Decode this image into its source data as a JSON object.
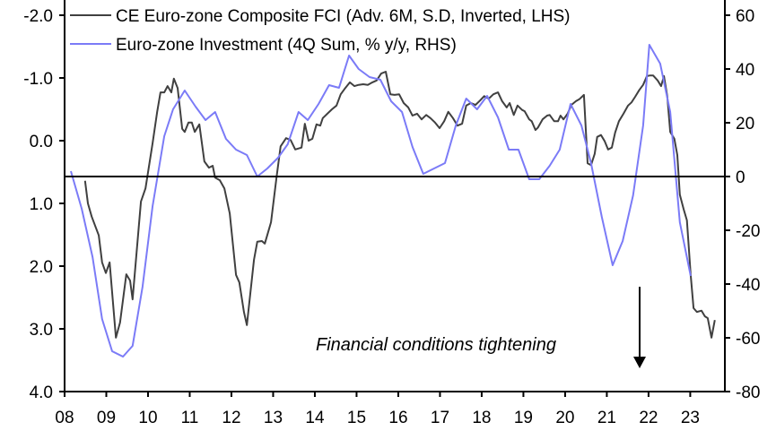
{
  "chart_data": {
    "type": "line",
    "title": "",
    "xlabel": "",
    "x_ticks": [
      "08",
      "09",
      "10",
      "11",
      "12",
      "13",
      "14",
      "15",
      "16",
      "17",
      "18",
      "19",
      "20",
      "21",
      "22",
      "23"
    ],
    "xlim": [
      2008,
      2023.83
    ],
    "y_left": {
      "ticks": [
        "-2.0",
        "-1.0",
        "0.0",
        "1.0",
        "2.0",
        "3.0",
        "4.0"
      ],
      "tick_values": [
        -2,
        -1,
        0,
        1,
        2,
        3,
        4
      ],
      "ylim": [
        -2,
        4
      ],
      "inverted": true
    },
    "y_right": {
      "ticks": [
        "60",
        "40",
        "20",
        "0",
        "-20",
        "-40",
        "-60",
        "-80"
      ],
      "tick_values": [
        60,
        40,
        20,
        0,
        -20,
        -40,
        -60,
        -80
      ],
      "ylim": [
        -80,
        60
      ]
    },
    "legend_placement": "top-left",
    "annotation": "Financial conditions tightening",
    "series": [
      {
        "name": "CE Euro-zone Composite FCI (Adv. 6M, S.D, Inverted, LHS)",
        "axis": "left",
        "color": "#404040",
        "points": [
          [
            2008.49,
            0.64
          ],
          [
            2008.56,
            1.0
          ],
          [
            2008.65,
            1.21
          ],
          [
            2008.82,
            1.51
          ],
          [
            2008.9,
            1.94
          ],
          [
            2008.99,
            2.11
          ],
          [
            2009.08,
            1.94
          ],
          [
            2009.23,
            3.14
          ],
          [
            2009.33,
            2.9
          ],
          [
            2009.48,
            2.13
          ],
          [
            2009.57,
            2.23
          ],
          [
            2009.63,
            2.53
          ],
          [
            2009.83,
            0.97
          ],
          [
            2009.94,
            0.76
          ],
          [
            2010.11,
            0.04
          ],
          [
            2010.22,
            -0.46
          ],
          [
            2010.3,
            -0.77
          ],
          [
            2010.39,
            -0.77
          ],
          [
            2010.47,
            -0.87
          ],
          [
            2010.56,
            -0.77
          ],
          [
            2010.62,
            -0.99
          ],
          [
            2010.71,
            -0.84
          ],
          [
            2010.82,
            -0.19
          ],
          [
            2010.88,
            -0.14
          ],
          [
            2010.97,
            -0.29
          ],
          [
            2011.05,
            -0.29
          ],
          [
            2011.12,
            -0.14
          ],
          [
            2011.23,
            -0.26
          ],
          [
            2011.35,
            0.33
          ],
          [
            2011.46,
            0.43
          ],
          [
            2011.55,
            0.4
          ],
          [
            2011.61,
            0.59
          ],
          [
            2011.72,
            0.63
          ],
          [
            2011.83,
            0.76
          ],
          [
            2011.96,
            1.16
          ],
          [
            2012.11,
            2.14
          ],
          [
            2012.19,
            2.26
          ],
          [
            2012.3,
            2.73
          ],
          [
            2012.37,
            2.94
          ],
          [
            2012.54,
            1.9
          ],
          [
            2012.62,
            1.61
          ],
          [
            2012.73,
            1.6
          ],
          [
            2012.8,
            1.64
          ],
          [
            2012.95,
            1.3
          ],
          [
            2013.08,
            0.59
          ],
          [
            2013.18,
            0.09
          ],
          [
            2013.31,
            -0.04
          ],
          [
            2013.42,
            -0.01
          ],
          [
            2013.53,
            0.14
          ],
          [
            2013.68,
            0.11
          ],
          [
            2013.76,
            -0.27
          ],
          [
            2013.85,
            0.0
          ],
          [
            2013.94,
            -0.03
          ],
          [
            2014.04,
            -0.26
          ],
          [
            2014.13,
            -0.24
          ],
          [
            2014.19,
            -0.36
          ],
          [
            2014.3,
            -0.43
          ],
          [
            2014.41,
            -0.5
          ],
          [
            2014.52,
            -0.56
          ],
          [
            2014.62,
            -0.74
          ],
          [
            2014.73,
            -0.84
          ],
          [
            2014.84,
            -0.93
          ],
          [
            2014.95,
            -0.87
          ],
          [
            2015.05,
            -0.89
          ],
          [
            2015.16,
            -0.9
          ],
          [
            2015.27,
            -0.89
          ],
          [
            2015.38,
            -0.93
          ],
          [
            2015.48,
            -0.96
          ],
          [
            2015.59,
            -1.07
          ],
          [
            2015.7,
            -1.1
          ],
          [
            2015.81,
            -0.74
          ],
          [
            2015.91,
            -0.73
          ],
          [
            2016.02,
            -0.74
          ],
          [
            2016.13,
            -0.6
          ],
          [
            2016.24,
            -0.53
          ],
          [
            2016.34,
            -0.4
          ],
          [
            2016.45,
            -0.43
          ],
          [
            2016.56,
            -0.34
          ],
          [
            2016.67,
            -0.41
          ],
          [
            2016.77,
            -0.36
          ],
          [
            2016.88,
            -0.29
          ],
          [
            2016.99,
            -0.2
          ],
          [
            2017.1,
            -0.31
          ],
          [
            2017.2,
            -0.46
          ],
          [
            2017.31,
            -0.36
          ],
          [
            2017.42,
            -0.24
          ],
          [
            2017.53,
            -0.27
          ],
          [
            2017.63,
            -0.56
          ],
          [
            2017.74,
            -0.6
          ],
          [
            2017.85,
            -0.57
          ],
          [
            2017.96,
            -0.64
          ],
          [
            2018.06,
            -0.71
          ],
          [
            2018.17,
            -0.67
          ],
          [
            2018.28,
            -0.74
          ],
          [
            2018.39,
            -0.77
          ],
          [
            2018.49,
            -0.63
          ],
          [
            2018.6,
            -0.53
          ],
          [
            2018.67,
            -0.6
          ],
          [
            2018.77,
            -0.41
          ],
          [
            2018.86,
            -0.56
          ],
          [
            2018.97,
            -0.49
          ],
          [
            2019.03,
            -0.47
          ],
          [
            2019.14,
            -0.34
          ],
          [
            2019.2,
            -0.31
          ],
          [
            2019.29,
            -0.17
          ],
          [
            2019.35,
            -0.21
          ],
          [
            2019.46,
            -0.34
          ],
          [
            2019.57,
            -0.4
          ],
          [
            2019.63,
            -0.41
          ],
          [
            2019.74,
            -0.31
          ],
          [
            2019.83,
            -0.31
          ],
          [
            2019.89,
            -0.4
          ],
          [
            2019.96,
            -0.34
          ],
          [
            2020.06,
            -0.43
          ],
          [
            2020.15,
            -0.57
          ],
          [
            2020.26,
            -0.63
          ],
          [
            2020.34,
            -0.66
          ],
          [
            2020.45,
            -0.73
          ],
          [
            2020.54,
            0.36
          ],
          [
            2020.62,
            0.39
          ],
          [
            2020.71,
            0.21
          ],
          [
            2020.77,
            -0.06
          ],
          [
            2020.86,
            -0.09
          ],
          [
            2020.95,
            0.01
          ],
          [
            2021.03,
            0.14
          ],
          [
            2021.12,
            0.11
          ],
          [
            2021.2,
            -0.13
          ],
          [
            2021.29,
            -0.31
          ],
          [
            2021.4,
            -0.43
          ],
          [
            2021.51,
            -0.56
          ],
          [
            2021.59,
            -0.61
          ],
          [
            2021.68,
            -0.7
          ],
          [
            2021.78,
            -0.81
          ],
          [
            2021.87,
            -0.89
          ],
          [
            2021.96,
            -1.03
          ],
          [
            2022.04,
            -1.04
          ],
          [
            2022.11,
            -1.04
          ],
          [
            2022.22,
            -0.96
          ],
          [
            2022.3,
            -0.87
          ],
          [
            2022.37,
            -1.03
          ],
          [
            2022.45,
            -0.71
          ],
          [
            2022.52,
            -0.14
          ],
          [
            2022.62,
            -0.03
          ],
          [
            2022.69,
            0.23
          ],
          [
            2022.75,
            0.86
          ],
          [
            2022.84,
            1.09
          ],
          [
            2022.92,
            1.27
          ],
          [
            2023.01,
            2.14
          ],
          [
            2023.08,
            2.67
          ],
          [
            2023.16,
            2.73
          ],
          [
            2023.27,
            2.71
          ],
          [
            2023.35,
            2.8
          ],
          [
            2023.42,
            2.83
          ],
          [
            2023.51,
            3.14
          ],
          [
            2023.59,
            2.86
          ]
        ]
      },
      {
        "name": "Euro-zone Investment (4Q Sum, % y/y, RHS)",
        "axis": "right",
        "color": "#7b7bf7",
        "points": [
          [
            2008.15,
            2
          ],
          [
            2008.41,
            -12
          ],
          [
            2008.67,
            -30
          ],
          [
            2008.9,
            -53
          ],
          [
            2009.14,
            -65
          ],
          [
            2009.4,
            -67
          ],
          [
            2009.63,
            -63
          ],
          [
            2009.87,
            -41
          ],
          [
            2010.11,
            -11
          ],
          [
            2010.39,
            15
          ],
          [
            2010.6,
            25
          ],
          [
            2010.88,
            32
          ],
          [
            2011.14,
            26
          ],
          [
            2011.38,
            21
          ],
          [
            2011.61,
            24
          ],
          [
            2011.87,
            14
          ],
          [
            2012.11,
            10
          ],
          [
            2012.37,
            8
          ],
          [
            2012.62,
            0
          ],
          [
            2012.86,
            3
          ],
          [
            2013.12,
            7
          ],
          [
            2013.35,
            12
          ],
          [
            2013.61,
            24
          ],
          [
            2013.83,
            21
          ],
          [
            2014.09,
            27
          ],
          [
            2014.34,
            34
          ],
          [
            2014.58,
            33
          ],
          [
            2014.82,
            45
          ],
          [
            2015.05,
            40
          ],
          [
            2015.31,
            37
          ],
          [
            2015.57,
            36
          ],
          [
            2015.83,
            28
          ],
          [
            2016.09,
            24
          ],
          [
            2016.34,
            11
          ],
          [
            2016.6,
            1
          ],
          [
            2016.86,
            3
          ],
          [
            2017.12,
            5
          ],
          [
            2017.38,
            19
          ],
          [
            2017.63,
            29
          ],
          [
            2017.89,
            25
          ],
          [
            2018.13,
            30
          ],
          [
            2018.39,
            22
          ],
          [
            2018.65,
            10
          ],
          [
            2018.88,
            10
          ],
          [
            2019.14,
            -1
          ],
          [
            2019.38,
            -1
          ],
          [
            2019.63,
            4
          ],
          [
            2019.87,
            10
          ],
          [
            2020.13,
            27
          ],
          [
            2020.39,
            19
          ],
          [
            2020.62,
            5
          ],
          [
            2020.88,
            -15
          ],
          [
            2021.14,
            -33
          ],
          [
            2021.38,
            -24
          ],
          [
            2021.63,
            -7
          ],
          [
            2021.87,
            19
          ],
          [
            2022.02,
            49
          ],
          [
            2022.28,
            42
          ],
          [
            2022.52,
            24
          ],
          [
            2022.75,
            -17
          ],
          [
            2023.01,
            -37
          ]
        ]
      }
    ]
  }
}
